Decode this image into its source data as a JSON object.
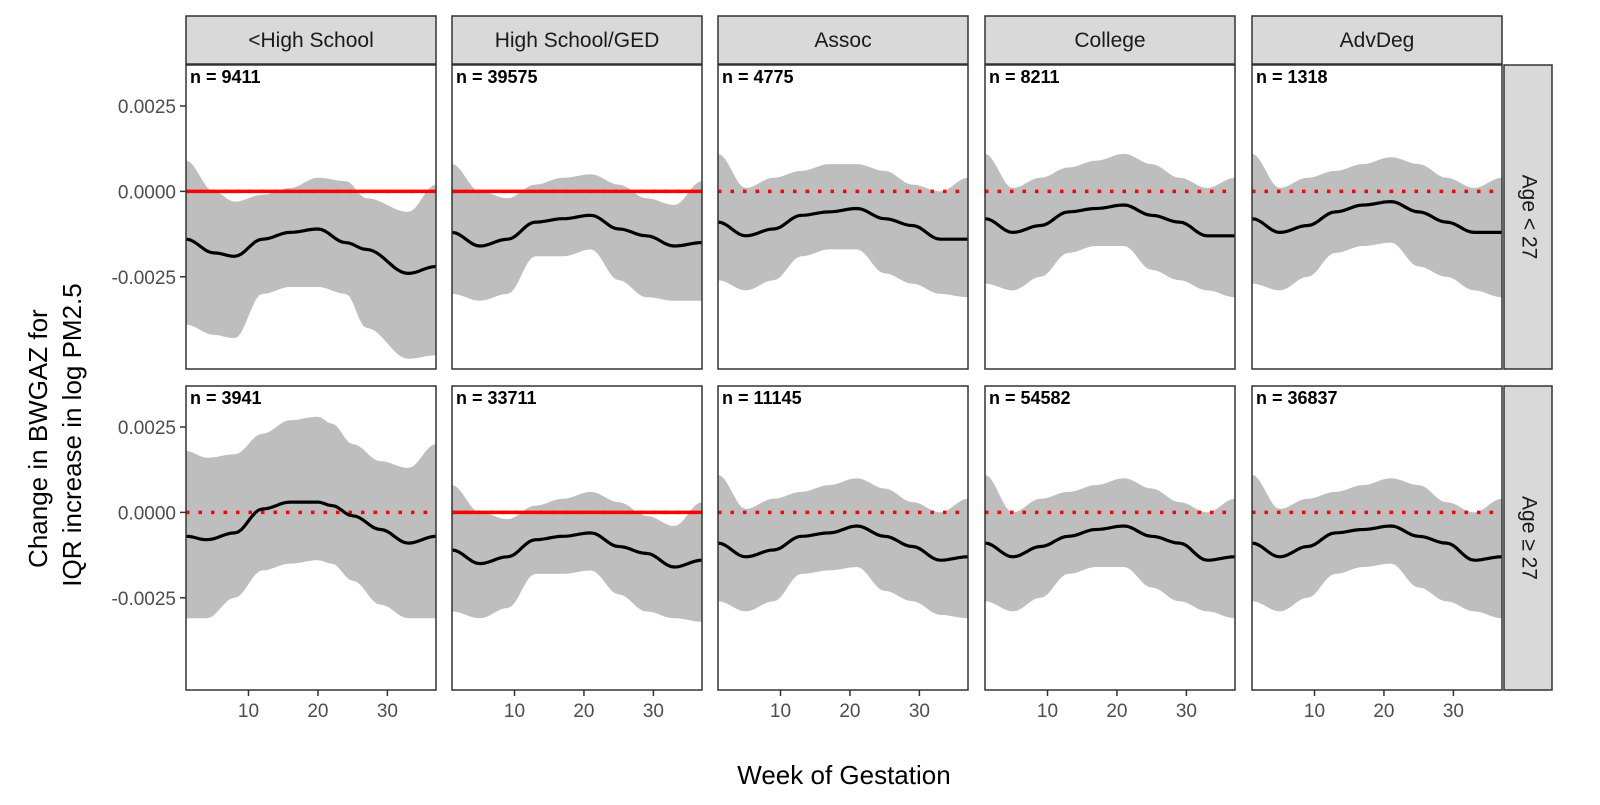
{
  "chart_data": {
    "type": "line",
    "xlabel": "Week of Gestation",
    "ylabel_lines": [
      "Change in BWGAZ for",
      "IQR increase in log PM2.5"
    ],
    "xlim": [
      1,
      37
    ],
    "ylim": [
      -0.0052,
      0.0037
    ],
    "x_ticks": [
      10,
      20,
      30
    ],
    "y_ticks": [
      0.0025,
      0.0,
      -0.0025
    ],
    "y_tick_labels": [
      "0.0025",
      "0.0000",
      "-0.0025"
    ],
    "x_tick_labels": [
      "10",
      "20",
      "30"
    ],
    "columns": [
      "<High School",
      "High School/GED",
      "Assoc",
      "College",
      "AdvDeg"
    ],
    "rows": [
      "Age < 27",
      "Age ≥ 27"
    ],
    "reference_line": {
      "y": 0,
      "color": "#ff0000"
    },
    "colors": {
      "line": "#000000",
      "band": "#bebebe",
      "reference": "#ff0000",
      "strip_fill": "#d9d9d9",
      "panel_border": "#333333"
    },
    "panels": [
      {
        "row": 0,
        "col": 0,
        "label": "n = 9411",
        "sig": [
          [
            1,
            37
          ]
        ],
        "x": [
          1,
          5,
          8,
          12,
          16,
          20,
          24,
          27,
          33,
          37
        ],
        "y": [
          -0.0014,
          -0.0018,
          -0.0019,
          -0.0014,
          -0.0012,
          -0.0011,
          -0.0015,
          -0.0017,
          -0.0024,
          -0.0022
        ],
        "lower": [
          -0.0039,
          -0.0042,
          -0.0043,
          -0.003,
          -0.0028,
          -0.0028,
          -0.003,
          -0.004,
          -0.0049,
          -0.0048
        ],
        "upper": [
          0.0009,
          0.0,
          -0.0003,
          -0.0001,
          0.0001,
          0.0004,
          0.0003,
          -0.0002,
          -0.0006,
          0.0002
        ]
      },
      {
        "row": 0,
        "col": 1,
        "label": "n = 39575",
        "sig": [
          [
            1,
            37
          ]
        ],
        "x": [
          1,
          5,
          9,
          13,
          17,
          21,
          25,
          29,
          33,
          37
        ],
        "y": [
          -0.0012,
          -0.0016,
          -0.0014,
          -0.0009,
          -0.0008,
          -0.0007,
          -0.0011,
          -0.0013,
          -0.0016,
          -0.0015
        ],
        "lower": [
          -0.003,
          -0.0032,
          -0.003,
          -0.0019,
          -0.0019,
          -0.0017,
          -0.0026,
          -0.0031,
          -0.0032,
          -0.0032
        ],
        "upper": [
          0.0008,
          0.0,
          -0.0002,
          0.0002,
          0.0004,
          0.0005,
          0.0002,
          -0.0002,
          -0.0004,
          0.0003
        ]
      },
      {
        "row": 0,
        "col": 2,
        "label": "n = 4775",
        "sig": [],
        "x": [
          1,
          5,
          9,
          13,
          17,
          21,
          25,
          29,
          33,
          37
        ],
        "y": [
          -0.0009,
          -0.0013,
          -0.0011,
          -0.0007,
          -0.0006,
          -0.0005,
          -0.0008,
          -0.001,
          -0.0014,
          -0.0014
        ],
        "lower": [
          -0.0026,
          -0.0029,
          -0.0026,
          -0.0019,
          -0.0017,
          -0.0017,
          -0.0024,
          -0.0027,
          -0.003,
          -0.0031
        ],
        "upper": [
          0.0011,
          0.0001,
          0.0004,
          0.0006,
          0.0008,
          0.0008,
          0.0006,
          0.0002,
          0.0,
          0.0004
        ]
      },
      {
        "row": 0,
        "col": 3,
        "label": "n = 8211",
        "sig": [],
        "x": [
          1,
          5,
          9,
          13,
          17,
          21,
          25,
          29,
          33,
          37
        ],
        "y": [
          -0.0008,
          -0.0012,
          -0.001,
          -0.0006,
          -0.0005,
          -0.0004,
          -0.0007,
          -0.0009,
          -0.0013,
          -0.0013
        ],
        "lower": [
          -0.0027,
          -0.0029,
          -0.0025,
          -0.0018,
          -0.0016,
          -0.0016,
          -0.0023,
          -0.0026,
          -0.0029,
          -0.0031
        ],
        "upper": [
          0.0011,
          0.0001,
          0.0004,
          0.0007,
          0.0009,
          0.0011,
          0.0008,
          0.0004,
          0.0001,
          0.0004
        ]
      },
      {
        "row": 0,
        "col": 4,
        "label": "n = 1318",
        "sig": [],
        "x": [
          1,
          5,
          9,
          13,
          17,
          21,
          25,
          29,
          33,
          37
        ],
        "y": [
          -0.0008,
          -0.0012,
          -0.001,
          -0.0006,
          -0.0004,
          -0.0003,
          -0.0006,
          -0.0009,
          -0.0012,
          -0.0012
        ],
        "lower": [
          -0.0027,
          -0.0029,
          -0.0025,
          -0.0018,
          -0.0016,
          -0.0015,
          -0.0022,
          -0.0025,
          -0.0029,
          -0.0031
        ],
        "upper": [
          0.0011,
          0.0001,
          0.0004,
          0.0006,
          0.0008,
          0.001,
          0.0008,
          0.0004,
          0.0001,
          0.0004
        ]
      },
      {
        "row": 1,
        "col": 0,
        "label": "n = 3941",
        "sig": [],
        "x": [
          1,
          4,
          8,
          12,
          16,
          20,
          22,
          25,
          29,
          33,
          37
        ],
        "y": [
          -0.0007,
          -0.0008,
          -0.0006,
          0.0001,
          0.0003,
          0.0003,
          0.0002,
          -0.0001,
          -0.0005,
          -0.0009,
          -0.0007
        ],
        "lower": [
          -0.0031,
          -0.0031,
          -0.0025,
          -0.0017,
          -0.0015,
          -0.0014,
          -0.0015,
          -0.002,
          -0.0027,
          -0.0031,
          -0.0031
        ],
        "upper": [
          0.0018,
          0.0016,
          0.0017,
          0.0023,
          0.0027,
          0.0028,
          0.0026,
          0.002,
          0.0015,
          0.0013,
          0.002
        ]
      },
      {
        "row": 1,
        "col": 1,
        "label": "n = 33711",
        "sig": [
          [
            1,
            37
          ]
        ],
        "x": [
          1,
          5,
          9,
          13,
          17,
          21,
          25,
          29,
          33,
          37
        ],
        "y": [
          -0.0011,
          -0.0015,
          -0.0013,
          -0.0008,
          -0.0007,
          -0.0006,
          -0.001,
          -0.0012,
          -0.0016,
          -0.0014
        ],
        "lower": [
          -0.0029,
          -0.0031,
          -0.0028,
          -0.0018,
          -0.0018,
          -0.0017,
          -0.0024,
          -0.0029,
          -0.0031,
          -0.0032
        ],
        "upper": [
          0.0008,
          0.0,
          -0.0002,
          0.0002,
          0.0004,
          0.0006,
          0.0003,
          -0.0001,
          -0.0004,
          0.0003
        ]
      },
      {
        "row": 1,
        "col": 2,
        "label": "n = 11145",
        "sig": [],
        "x": [
          1,
          5,
          9,
          13,
          17,
          21,
          25,
          29,
          33,
          37
        ],
        "y": [
          -0.0009,
          -0.0013,
          -0.0011,
          -0.0007,
          -0.0006,
          -0.0004,
          -0.0007,
          -0.001,
          -0.0014,
          -0.0013
        ],
        "lower": [
          -0.0026,
          -0.0029,
          -0.0026,
          -0.0018,
          -0.0017,
          -0.0016,
          -0.0023,
          -0.0026,
          -0.003,
          -0.0031
        ],
        "upper": [
          0.0011,
          0.0001,
          0.0004,
          0.0006,
          0.0008,
          0.001,
          0.0007,
          0.0003,
          0.0,
          0.0004
        ]
      },
      {
        "row": 1,
        "col": 3,
        "label": "n = 54582",
        "sig": [],
        "x": [
          1,
          5,
          9,
          13,
          17,
          21,
          25,
          29,
          33,
          37
        ],
        "y": [
          -0.0009,
          -0.0013,
          -0.001,
          -0.0007,
          -0.0005,
          -0.0004,
          -0.0007,
          -0.0009,
          -0.0014,
          -0.0013
        ],
        "lower": [
          -0.0026,
          -0.0029,
          -0.0025,
          -0.0018,
          -0.0016,
          -0.0016,
          -0.0022,
          -0.0026,
          -0.0029,
          -0.0031
        ],
        "upper": [
          0.0011,
          0.0,
          0.0004,
          0.0006,
          0.0008,
          0.001,
          0.0007,
          0.0003,
          0.0,
          0.0004
        ]
      },
      {
        "row": 1,
        "col": 4,
        "label": "n = 36837",
        "sig": [],
        "x": [
          1,
          5,
          9,
          13,
          17,
          21,
          25,
          29,
          33,
          37
        ],
        "y": [
          -0.0009,
          -0.0013,
          -0.001,
          -0.0006,
          -0.0005,
          -0.0004,
          -0.0007,
          -0.0009,
          -0.0014,
          -0.0013
        ],
        "lower": [
          -0.0026,
          -0.0029,
          -0.0025,
          -0.0018,
          -0.0016,
          -0.0015,
          -0.0022,
          -0.0026,
          -0.0029,
          -0.0031
        ],
        "upper": [
          0.0011,
          0.0001,
          0.0004,
          0.0006,
          0.0008,
          0.001,
          0.0008,
          0.0003,
          0.0,
          0.0004
        ]
      }
    ]
  }
}
